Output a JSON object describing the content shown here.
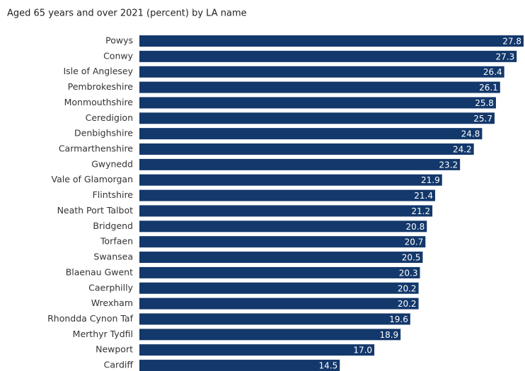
{
  "chart_data": {
    "type": "bar",
    "orientation": "horizontal",
    "title": "Aged 65 years and over 2021 (percent) by LA name",
    "categories": [
      "Powys",
      "Conwy",
      "Isle of Anglesey",
      "Pembrokeshire",
      "Monmouthshire",
      "Ceredigion",
      "Denbighshire",
      "Carmarthenshire",
      "Gwynedd",
      "Vale of Glamorgan",
      "Flintshire",
      "Neath Port Talbot",
      "Bridgend",
      "Torfaen",
      "Swansea",
      "Blaenau Gwent",
      "Caerphilly",
      "Wrexham",
      "Rhondda Cynon Taf",
      "Merthyr Tydfil",
      "Newport",
      "Cardiff"
    ],
    "values": [
      27.8,
      27.3,
      26.4,
      26.1,
      25.8,
      25.7,
      24.8,
      24.2,
      23.2,
      21.9,
      21.4,
      21.2,
      20.8,
      20.7,
      20.5,
      20.3,
      20.2,
      20.2,
      19.6,
      18.9,
      17.0,
      14.5
    ],
    "value_labels": [
      "27.8",
      "27.3",
      "26.4",
      "26.1",
      "25.8",
      "25.7",
      "24.8",
      "24.2",
      "23.2",
      "21.9",
      "21.4",
      "21.2",
      "20.8",
      "20.7",
      "20.5",
      "20.3",
      "20.2",
      "20.2",
      "19.6",
      "18.9",
      "17.0",
      "14.5"
    ],
    "color": "#13386b"
  }
}
